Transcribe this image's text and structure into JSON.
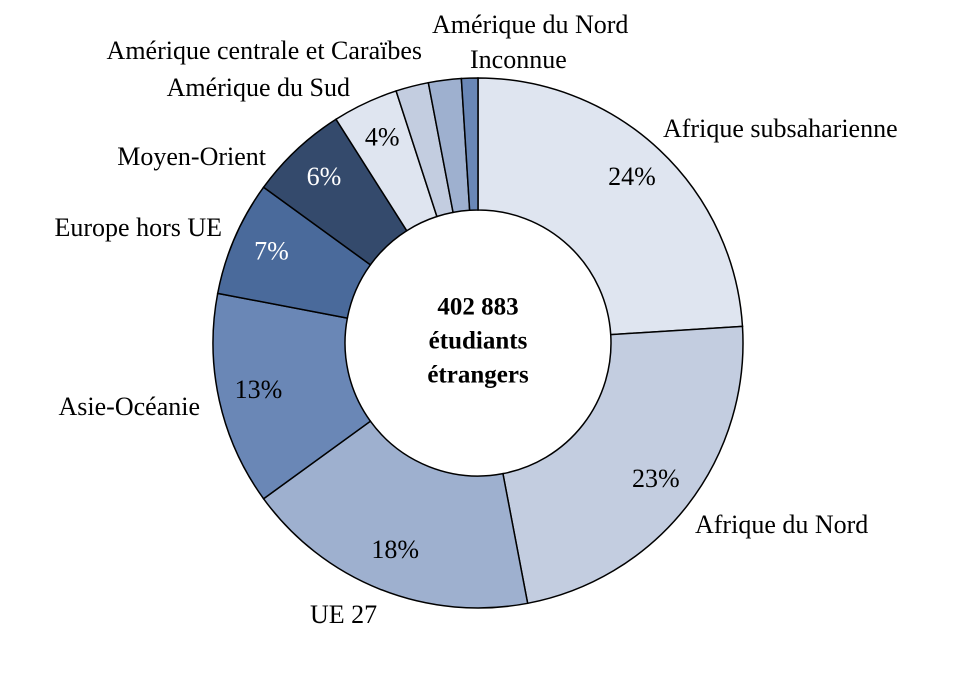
{
  "chart_data": {
    "type": "donut",
    "categories": [
      "Afrique subsaharienne",
      "Afrique du Nord",
      "UE 27",
      "Asie-Océanie",
      "Europe hors UE",
      "Moyen-Orient",
      "Amérique du Sud",
      "Amérique centrale et Caraïbes",
      "Amérique du Nord",
      "Inconnue"
    ],
    "values": [
      24,
      23,
      18,
      13,
      7,
      6,
      4,
      2,
      2,
      1
    ],
    "value_labels": [
      "24%",
      "23%",
      "18%",
      "13%",
      "7%",
      "6%",
      "4%",
      null,
      null,
      null
    ],
    "colors": [
      "#dfe5f0",
      "#c3cde0",
      "#9eb0cf",
      "#6a87b6",
      "#4a6a9b",
      "#344a6c",
      "#dfe5f0",
      "#c3cde0",
      "#9eb0cf",
      "#6a87b6"
    ],
    "center_text": [
      "402 883",
      "étudiants",
      "étrangers"
    ]
  }
}
